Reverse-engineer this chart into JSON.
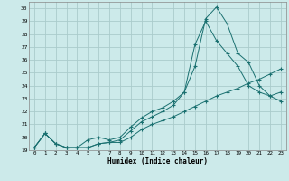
{
  "xlabel": "Humidex (Indice chaleur)",
  "bg_color": "#cceaea",
  "grid_color": "#aacccc",
  "line_color": "#1a7070",
  "xlim": [
    -0.5,
    23.5
  ],
  "ylim": [
    19,
    30.5
  ],
  "xticks": [
    0,
    1,
    2,
    3,
    4,
    5,
    6,
    7,
    8,
    9,
    10,
    11,
    12,
    13,
    14,
    15,
    16,
    17,
    18,
    19,
    20,
    21,
    22,
    23
  ],
  "yticks": [
    19,
    20,
    21,
    22,
    23,
    24,
    25,
    26,
    27,
    28,
    29,
    30
  ],
  "line1_x": [
    0,
    1,
    2,
    3,
    4,
    5,
    6,
    7,
    8,
    9,
    10,
    11,
    12,
    13,
    14,
    15,
    16,
    17,
    18,
    19,
    20,
    21,
    22,
    23
  ],
  "line1_y": [
    19.2,
    20.3,
    19.5,
    19.2,
    19.2,
    19.2,
    19.5,
    19.6,
    19.6,
    20.0,
    20.6,
    21.0,
    21.3,
    21.6,
    22.0,
    22.4,
    22.8,
    23.2,
    23.5,
    23.8,
    24.2,
    24.5,
    24.9,
    25.3
  ],
  "line2_x": [
    0,
    1,
    2,
    3,
    4,
    5,
    6,
    7,
    8,
    9,
    10,
    11,
    12,
    13,
    14,
    15,
    16,
    17,
    18,
    19,
    20,
    21,
    22,
    23
  ],
  "line2_y": [
    19.2,
    20.3,
    19.5,
    19.2,
    19.2,
    19.8,
    20.0,
    19.8,
    20.0,
    20.8,
    21.5,
    22.0,
    22.3,
    22.8,
    23.5,
    25.5,
    29.2,
    30.1,
    28.8,
    26.5,
    25.8,
    24.0,
    23.2,
    23.5
  ],
  "line3_x": [
    0,
    1,
    2,
    3,
    4,
    5,
    6,
    7,
    8,
    9,
    10,
    11,
    12,
    13,
    14,
    15,
    16,
    17,
    18,
    19,
    20,
    21,
    22,
    23
  ],
  "line3_y": [
    19.2,
    20.3,
    19.5,
    19.2,
    19.2,
    19.2,
    19.5,
    19.6,
    19.8,
    20.5,
    21.2,
    21.6,
    22.0,
    22.5,
    23.5,
    27.2,
    29.0,
    27.5,
    26.5,
    25.5,
    24.0,
    23.5,
    23.2,
    22.8
  ]
}
